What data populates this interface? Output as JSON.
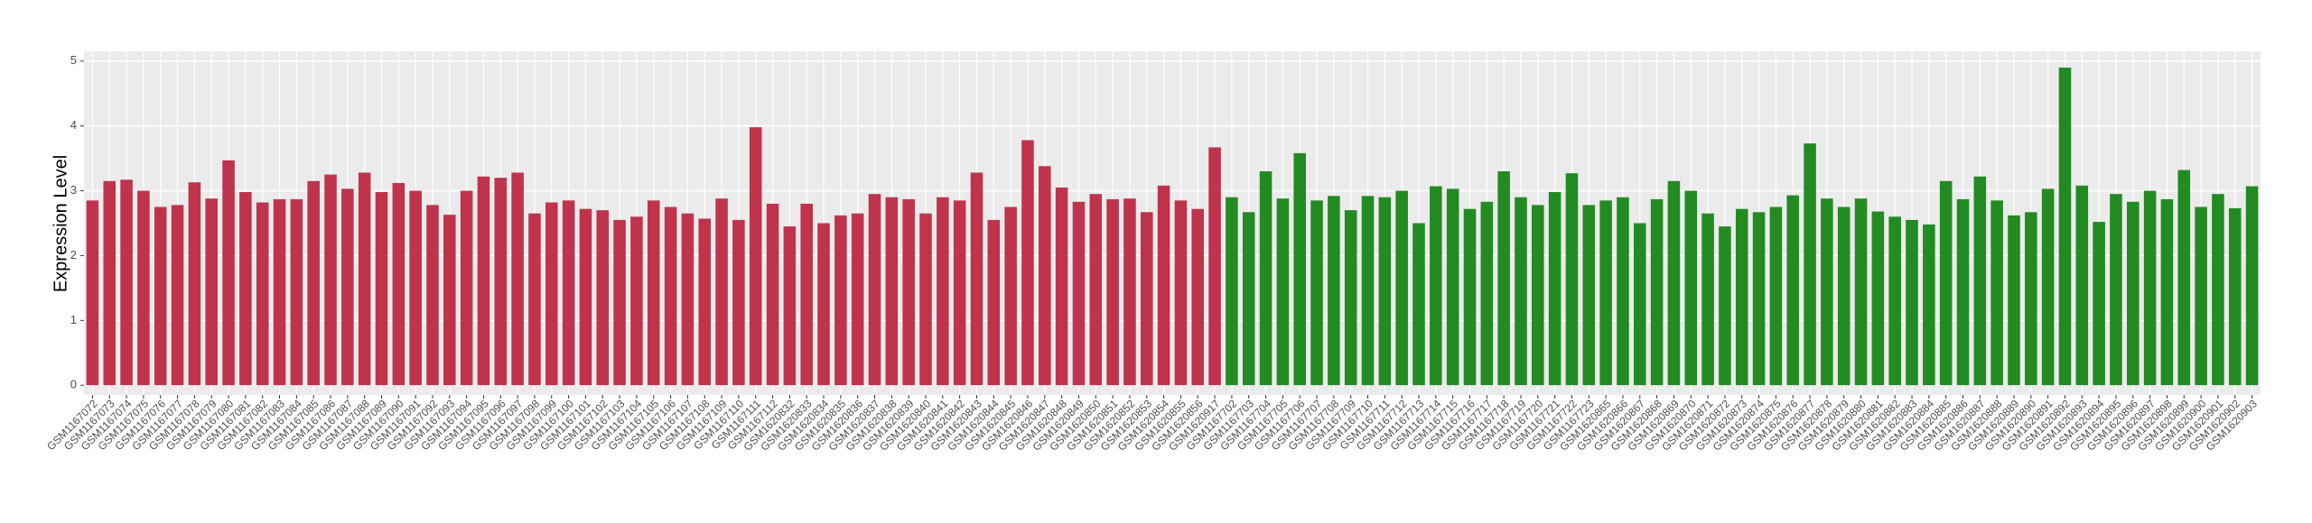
{
  "chart_data": {
    "type": "bar",
    "y_label": "Expression Level",
    "categories": [
      "GSM1167072",
      "GSM1167073",
      "GSM1167074",
      "GSM1167075",
      "GSM1167076",
      "GSM1167077",
      "GSM1167078",
      "GSM1167079",
      "GSM1167080",
      "GSM1167081",
      "GSM1167082",
      "GSM1167083",
      "GSM1167084",
      "GSM1167085",
      "GSM1167086",
      "GSM1167087",
      "GSM1167088",
      "GSM1167089",
      "GSM1167090",
      "GSM1167091",
      "GSM1167092",
      "GSM1167093",
      "GSM1167094",
      "GSM1167095",
      "GSM1167096",
      "GSM1167097",
      "GSM1167098",
      "GSM1167099",
      "GSM1167100",
      "GSM1167101",
      "GSM1167102",
      "GSM1167103",
      "GSM1167104",
      "GSM1167105",
      "GSM1167106",
      "GSM1167107",
      "GSM1167108",
      "GSM1167109",
      "GSM1167110",
      "GSM1167111",
      "GSM1167112",
      "GSM1620832",
      "GSM1620833",
      "GSM1620834",
      "GSM1620835",
      "GSM1620836",
      "GSM1620837",
      "GSM1620838",
      "GSM1620839",
      "GSM1620840",
      "GSM1620841",
      "GSM1620842",
      "GSM1620843",
      "GSM1620844",
      "GSM1620845",
      "GSM1620846",
      "GSM1620847",
      "GSM1620848",
      "GSM1620849",
      "GSM1620850",
      "GSM1620851",
      "GSM1620852",
      "GSM1620853",
      "GSM1620854",
      "GSM1620855",
      "GSM1620856",
      "GSM1620917",
      "GSM1167702",
      "GSM1167703",
      "GSM1167704",
      "GSM1167705",
      "GSM1167706",
      "GSM1167707",
      "GSM1167708",
      "GSM1167709",
      "GSM1167710",
      "GSM1167711",
      "GSM1167712",
      "GSM1167713",
      "GSM1167714",
      "GSM1167715",
      "GSM1167716",
      "GSM1167717",
      "GSM1167718",
      "GSM1167719",
      "GSM1167720",
      "GSM1167721",
      "GSM1167722",
      "GSM1167723",
      "GSM1620865",
      "GSM1620866",
      "GSM1620867",
      "GSM1620868",
      "GSM1620869",
      "GSM1620870",
      "GSM1620871",
      "GSM1620872",
      "GSM1620873",
      "GSM1620874",
      "GSM1620875",
      "GSM1620876",
      "GSM1620877",
      "GSM1620878",
      "GSM1620879",
      "GSM1620880",
      "GSM1620881",
      "GSM1620882",
      "GSM1620883",
      "GSM1620884",
      "GSM1620885",
      "GSM1620886",
      "GSM1620887",
      "GSM1620888",
      "GSM1620889",
      "GSM1620890",
      "GSM1620891",
      "GSM1620892",
      "GSM1620893",
      "GSM1620894",
      "GSM1620895",
      "GSM1620896",
      "GSM1620897",
      "GSM1620898",
      "GSM1620899",
      "GSM1620900",
      "GSM1620901",
      "GSM1620902",
      "GSM1620903"
    ],
    "series": [
      {
        "color": "#c0334d",
        "values": [
          2.85,
          3.15,
          3.17,
          3.0,
          2.75,
          2.78,
          3.13,
          2.88,
          3.47,
          2.98,
          2.82,
          2.87,
          2.87,
          3.15,
          3.25,
          3.03,
          3.28,
          2.98,
          3.12,
          3.0,
          2.78,
          2.63,
          3.0,
          3.22,
          3.2,
          3.28,
          2.65,
          2.82,
          2.85,
          2.72,
          2.7,
          2.55,
          2.6,
          2.85,
          2.75,
          2.65,
          2.57,
          2.88,
          2.55,
          3.98,
          2.8,
          2.45,
          2.8,
          2.5,
          2.62,
          2.65,
          2.95,
          2.9,
          2.87,
          2.65,
          2.9,
          2.85,
          3.28,
          2.55,
          2.75,
          3.78,
          3.38,
          3.05,
          2.83,
          2.95,
          2.87,
          2.88,
          2.67,
          3.08,
          2.85,
          2.72,
          3.67,
          null,
          null,
          null,
          null,
          null,
          null,
          null,
          null,
          null,
          null,
          null,
          null,
          null,
          null,
          null,
          null,
          null,
          null,
          null,
          null,
          null,
          null,
          null,
          null,
          null,
          null,
          null,
          null,
          null,
          null,
          null,
          null,
          null,
          null,
          null,
          null,
          null,
          null,
          null,
          null,
          null,
          null,
          null,
          null,
          null,
          null,
          null,
          null,
          null,
          null,
          null,
          null,
          null,
          null,
          null,
          null,
          null,
          null,
          null,
          null,
          null
        ]
      },
      {
        "color": "#228b22",
        "values": [
          null,
          null,
          null,
          null,
          null,
          null,
          null,
          null,
          null,
          null,
          null,
          null,
          null,
          null,
          null,
          null,
          null,
          null,
          null,
          null,
          null,
          null,
          null,
          null,
          null,
          null,
          null,
          null,
          null,
          null,
          null,
          null,
          null,
          null,
          null,
          null,
          null,
          null,
          null,
          null,
          null,
          null,
          null,
          null,
          null,
          null,
          null,
          null,
          null,
          null,
          null,
          null,
          null,
          null,
          null,
          null,
          null,
          null,
          null,
          null,
          null,
          null,
          null,
          null,
          null,
          null,
          null,
          2.9,
          2.67,
          3.3,
          2.88,
          3.58,
          2.85,
          2.92,
          2.7,
          2.92,
          2.9,
          3.0,
          2.5,
          3.07,
          3.03,
          2.72,
          2.83,
          3.3,
          2.9,
          2.78,
          2.98,
          3.27,
          2.78,
          2.85,
          2.9,
          2.5,
          2.87,
          3.15,
          3.0,
          2.65,
          2.45,
          2.72,
          2.67,
          2.75,
          2.93,
          3.73,
          2.88,
          2.75,
          2.88,
          2.68,
          2.6,
          2.55,
          2.48,
          3.15,
          2.87,
          3.22,
          2.85,
          2.62,
          2.67,
          3.03,
          4.9,
          3.08,
          2.52,
          2.95,
          2.83,
          3.0,
          2.87,
          3.32,
          2.75,
          2.95,
          2.73,
          3.07
        ]
      }
    ],
    "ylim": [
      -0.15,
      5.15
    ],
    "yticks": [
      0,
      1,
      2,
      3,
      4,
      5
    ],
    "grid": true
  }
}
